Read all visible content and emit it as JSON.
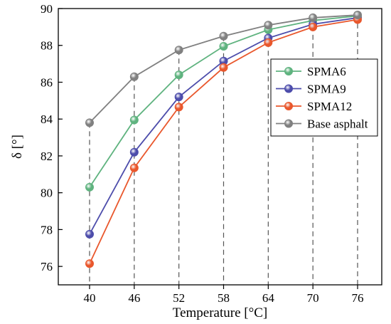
{
  "chart_data": {
    "type": "line",
    "title": "",
    "xlabel": "Temperature [°C]",
    "ylabel": "δ [°]",
    "x": [
      40,
      46,
      52,
      58,
      64,
      70,
      76
    ],
    "x_tick_labels": [
      "40",
      "46",
      "52",
      "58",
      "64",
      "70",
      "76"
    ],
    "ylim": [
      75,
      90
    ],
    "y_ticks": [
      76,
      78,
      80,
      82,
      84,
      86,
      88,
      90
    ],
    "y_tick_labels": [
      "76",
      "78",
      "80",
      "82",
      "84",
      "86",
      "88",
      "90"
    ],
    "vertical_dashed_guides": true,
    "legend_position": "right",
    "series": [
      {
        "name": "SPMA6",
        "color": "#5fb37f",
        "values": [
          80.3,
          83.95,
          86.4,
          87.95,
          88.85,
          89.35,
          89.6
        ]
      },
      {
        "name": "SPMA9",
        "color": "#4d4dab",
        "values": [
          77.75,
          82.2,
          85.2,
          87.15,
          88.4,
          89.15,
          89.5
        ]
      },
      {
        "name": "SPMA12",
        "color": "#e9572c",
        "values": [
          76.15,
          81.35,
          84.65,
          86.8,
          88.15,
          89.0,
          89.4
        ]
      },
      {
        "name": "Base asphalt",
        "color": "#808080",
        "values": [
          83.8,
          86.3,
          87.75,
          88.5,
          89.1,
          89.5,
          89.65
        ]
      }
    ]
  }
}
